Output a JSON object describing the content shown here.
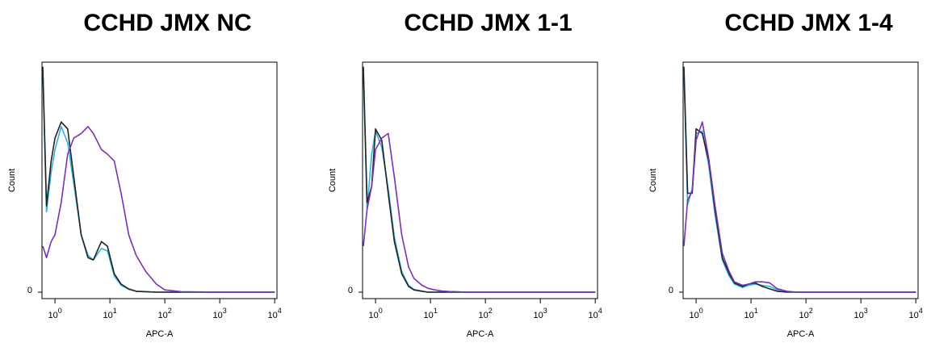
{
  "chart_data": [
    {
      "type": "line",
      "title": "CCHD JMX NC",
      "xlabel": "APC-A",
      "ylabel": "Count",
      "xscale": "log",
      "xlim": [
        0.58,
        11000
      ],
      "ylim": [
        -2.8,
        100
      ],
      "yticks": [
        0
      ],
      "xticks": [
        {
          "value": 1,
          "label": "10^0"
        },
        {
          "value": 10,
          "label": "10^1"
        },
        {
          "value": 100,
          "label": "10^2"
        },
        {
          "value": 1000,
          "label": "10^3"
        },
        {
          "value": 10000,
          "label": "10^4"
        }
      ],
      "x": [
        0.6,
        0.7,
        0.85,
        1,
        1.3,
        1.7,
        2.2,
        3,
        4,
        5,
        7,
        9,
        12,
        16,
        22,
        30,
        45,
        70,
        100,
        200,
        1000,
        10000
      ],
      "series": [
        {
          "color": "#29b6e0",
          "values": [
            96,
            35,
            52,
            62,
            72,
            65,
            47,
            25,
            16,
            14,
            19,
            18,
            7,
            3,
            1.2,
            0.4,
            0.2,
            0,
            0,
            0,
            0,
            0
          ]
        },
        {
          "color": "#222222",
          "values": [
            98,
            37.5,
            57,
            67,
            74,
            71,
            50,
            25,
            15,
            14,
            22,
            20,
            8,
            3.5,
            1.4,
            0.4,
            0.2,
            0,
            0,
            0,
            0,
            0
          ]
        },
        {
          "color": "#7b2fbf",
          "values": [
            20,
            15,
            22,
            25,
            39,
            60,
            67,
            69,
            72,
            69,
            62,
            60,
            57,
            43,
            25,
            16,
            9,
            3.5,
            1,
            0.2,
            0,
            0
          ]
        }
      ]
    },
    {
      "type": "line",
      "title": "CCHD JMX 1-1",
      "xlabel": "APC-A",
      "ylabel": "Count",
      "xscale": "log",
      "xlim": [
        0.58,
        11000
      ],
      "ylim": [
        -2.8,
        100
      ],
      "yticks": [
        0
      ],
      "xticks": [
        {
          "value": 1,
          "label": "10^0"
        },
        {
          "value": 10,
          "label": "10^1"
        },
        {
          "value": 100,
          "label": "10^2"
        },
        {
          "value": 1000,
          "label": "10^3"
        },
        {
          "value": 10000,
          "label": "10^4"
        }
      ],
      "x": [
        0.6,
        0.7,
        0.85,
        1,
        1.3,
        1.7,
        2.2,
        3,
        4,
        5,
        7,
        9,
        12,
        16,
        22,
        30,
        45,
        70,
        100,
        200,
        1000,
        10000
      ],
      "series": [
        {
          "color": "#29b6e0",
          "values": [
            96,
            36,
            60,
            70,
            63,
            45,
            24,
            9,
            3,
            1.2,
            0.5,
            0,
            0,
            0,
            0,
            0,
            0,
            0,
            0,
            0,
            0,
            0
          ]
        },
        {
          "color": "#222222",
          "values": [
            98,
            39,
            46,
            71,
            66,
            43,
            22,
            8,
            2.5,
            1,
            0.4,
            0,
            0,
            0,
            0,
            0,
            0,
            0,
            0,
            0,
            0,
            0
          ]
        },
        {
          "color": "#7b2fbf",
          "values": [
            20,
            36,
            46,
            62,
            67,
            69,
            50,
            25,
            11,
            6,
            3,
            1.7,
            1,
            0.5,
            0.3,
            0.2,
            0,
            0,
            0,
            0,
            0,
            0
          ]
        }
      ]
    },
    {
      "type": "line",
      "title": "CCHD JMX 1-4",
      "xlabel": "APC-A",
      "ylabel": "Count",
      "xscale": "log",
      "xlim": [
        0.58,
        11000
      ],
      "ylim": [
        -2.8,
        100
      ],
      "yticks": [
        0
      ],
      "xticks": [
        {
          "value": 1,
          "label": "10^0"
        },
        {
          "value": 10,
          "label": "10^1"
        },
        {
          "value": 100,
          "label": "10^2"
        },
        {
          "value": 1000,
          "label": "10^3"
        },
        {
          "value": 10000,
          "label": "10^4"
        }
      ],
      "x": [
        0.6,
        0.7,
        0.85,
        1,
        1.3,
        1.7,
        2.2,
        3,
        4,
        5,
        7,
        9,
        12,
        16,
        22,
        30,
        45,
        70,
        100,
        200,
        1000,
        10000
      ],
      "series": [
        {
          "color": "#29b6e0",
          "values": [
            96,
            38,
            45,
            69,
            70,
            55,
            34,
            14,
            7,
            3.5,
            2,
            3,
            3.5,
            3,
            2.5,
            1,
            0.3,
            0,
            0,
            0,
            0,
            0
          ]
        },
        {
          "color": "#222222",
          "values": [
            98,
            43,
            43,
            71,
            69,
            57,
            36,
            15,
            8,
            4,
            2.5,
            3.5,
            4,
            2.5,
            1.4,
            0.4,
            0,
            0,
            0,
            0,
            0,
            0
          ]
        },
        {
          "color": "#7b2fbf",
          "values": [
            20,
            40,
            44,
            66,
            74,
            58,
            38,
            17,
            9,
            4.5,
            3,
            3.5,
            4.5,
            4.5,
            4,
            1.5,
            0.4,
            0,
            0,
            0,
            0,
            0
          ]
        }
      ]
    }
  ]
}
